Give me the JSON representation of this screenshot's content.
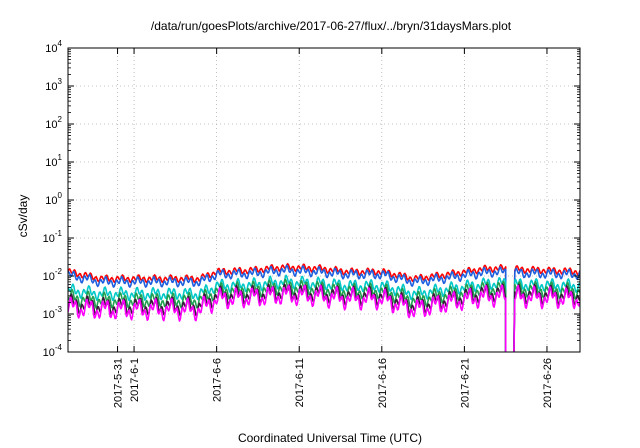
{
  "chart_data": {
    "type": "line",
    "title": "/data/run/goesPlots/archive/2017-06-27/flux/../bryn/31daysMars.plot",
    "xlabel": "Coordinated Universal Time (UTC)",
    "ylabel": "cSv/day",
    "y_scale": "log",
    "ylim": [
      0.0001,
      10000
    ],
    "xlim": [
      "2017-05-28",
      "2017-06-28"
    ],
    "y_ticks": [
      {
        "base": "10",
        "exp": "4",
        "value": 10000
      },
      {
        "base": "10",
        "exp": "3",
        "value": 1000
      },
      {
        "base": "10",
        "exp": "2",
        "value": 100
      },
      {
        "base": "10",
        "exp": "1",
        "value": 10
      },
      {
        "base": "10",
        "exp": "0",
        "value": 1
      },
      {
        "base": "10",
        "exp": "-1",
        "value": 0.1
      },
      {
        "base": "10",
        "exp": "-2",
        "value": 0.01
      },
      {
        "base": "10",
        "exp": "-3",
        "value": 0.001
      },
      {
        "base": "10",
        "exp": "-4",
        "value": 0.0001
      }
    ],
    "x_ticks": [
      {
        "label": "2017-5-31",
        "date": "2017-05-31"
      },
      {
        "label": "2017-6-1",
        "date": "2017-06-01"
      },
      {
        "label": "2017-6-6",
        "date": "2017-06-06"
      },
      {
        "label": "2017-6-11",
        "date": "2017-06-11"
      },
      {
        "label": "2017-6-16",
        "date": "2017-06-16"
      },
      {
        "label": "2017-6-21",
        "date": "2017-06-21"
      },
      {
        "label": "2017-6-26",
        "date": "2017-06-26"
      }
    ],
    "grid": true,
    "gap": [
      "2017-06-23 12:00",
      "2017-06-24 00:00"
    ],
    "series": [
      {
        "color": "#ff0000",
        "x": [
          "2017-05-28",
          "2017-05-30",
          "2017-06-01",
          "2017-06-03",
          "2017-06-05",
          "2017-06-06",
          "2017-06-08",
          "2017-06-10",
          "2017-06-12",
          "2017-06-14",
          "2017-06-16",
          "2017-06-18",
          "2017-06-20",
          "2017-06-22",
          "2017-06-23",
          "2017-06-24",
          "2017-06-26",
          "2017-06-28"
        ],
        "y": [
          0.013,
          0.0085,
          0.0085,
          0.0085,
          0.0085,
          0.013,
          0.014,
          0.017,
          0.016,
          0.013,
          0.013,
          0.0085,
          0.011,
          0.015,
          0.016,
          0.015,
          0.014,
          0.013
        ]
      },
      {
        "color": "#1e5fe0",
        "x": [
          "2017-05-28",
          "2017-05-30",
          "2017-06-01",
          "2017-06-03",
          "2017-06-05",
          "2017-06-06",
          "2017-06-08",
          "2017-06-10",
          "2017-06-12",
          "2017-06-14",
          "2017-06-16",
          "2017-06-18",
          "2017-06-20",
          "2017-06-22",
          "2017-06-23",
          "2017-06-24",
          "2017-06-26",
          "2017-06-28"
        ],
        "y": [
          0.0105,
          0.007,
          0.007,
          0.007,
          0.007,
          0.011,
          0.0115,
          0.014,
          0.013,
          0.011,
          0.011,
          0.007,
          0.009,
          0.012,
          0.013,
          0.012,
          0.0115,
          0.011
        ]
      },
      {
        "color": "#00c8c8",
        "x": [
          "2017-05-28",
          "2017-05-30",
          "2017-06-01",
          "2017-06-03",
          "2017-06-05",
          "2017-06-06",
          "2017-06-08",
          "2017-06-10",
          "2017-06-12",
          "2017-06-14",
          "2017-06-16",
          "2017-06-18",
          "2017-06-20",
          "2017-06-22",
          "2017-06-23",
          "2017-06-24",
          "2017-06-26",
          "2017-06-28"
        ],
        "y": [
          0.0042,
          0.0034,
          0.0034,
          0.0034,
          0.0034,
          0.0055,
          0.0058,
          0.007,
          0.0065,
          0.0055,
          0.0055,
          0.0034,
          0.0045,
          0.006,
          0.0065,
          0.006,
          0.0058,
          0.0055
        ]
      },
      {
        "color": "#20a050",
        "x": [
          "2017-05-28",
          "2017-05-30",
          "2017-06-01",
          "2017-06-03",
          "2017-06-05",
          "2017-06-06",
          "2017-06-08",
          "2017-06-10",
          "2017-06-12",
          "2017-06-14",
          "2017-06-16",
          "2017-06-18",
          "2017-06-20",
          "2017-06-22",
          "2017-06-23",
          "2017-06-24",
          "2017-06-26",
          "2017-06-28"
        ],
        "y": [
          0.0027,
          0.0023,
          0.0023,
          0.0023,
          0.0023,
          0.004,
          0.0043,
          0.0052,
          0.0048,
          0.004,
          0.004,
          0.0023,
          0.0033,
          0.0045,
          0.0048,
          0.0045,
          0.0043,
          0.004
        ]
      },
      {
        "color": "#3a1a3a",
        "x": [
          "2017-05-28",
          "2017-05-30",
          "2017-06-01",
          "2017-06-03",
          "2017-06-05",
          "2017-06-06",
          "2017-06-08",
          "2017-06-10",
          "2017-06-12",
          "2017-06-14",
          "2017-06-16",
          "2017-06-18",
          "2017-06-20",
          "2017-06-22",
          "2017-06-23",
          "2017-06-24",
          "2017-06-26",
          "2017-06-28"
        ],
        "y": [
          0.0019,
          0.0016,
          0.0016,
          0.0016,
          0.0016,
          0.003,
          0.0032,
          0.0038,
          0.0035,
          0.003,
          0.003,
          0.0016,
          0.0024,
          0.0034,
          0.0036,
          0.0034,
          0.0032,
          0.003
        ]
      },
      {
        "color": "#ff00ff",
        "x": [
          "2017-05-28",
          "2017-05-30",
          "2017-06-01",
          "2017-06-03",
          "2017-06-05",
          "2017-06-06",
          "2017-06-08",
          "2017-06-10",
          "2017-06-12",
          "2017-06-14",
          "2017-06-16",
          "2017-06-18",
          "2017-06-20",
          "2017-06-22",
          "2017-06-23",
          "2017-06-24",
          "2017-06-26",
          "2017-06-28"
        ],
        "y": [
          0.0015,
          0.0013,
          0.0013,
          0.0013,
          0.0013,
          0.0025,
          0.0027,
          0.0032,
          0.003,
          0.0025,
          0.0025,
          0.0013,
          0.002,
          0.0028,
          0.003,
          0.0028,
          0.0027,
          0.0025
        ]
      }
    ]
  }
}
